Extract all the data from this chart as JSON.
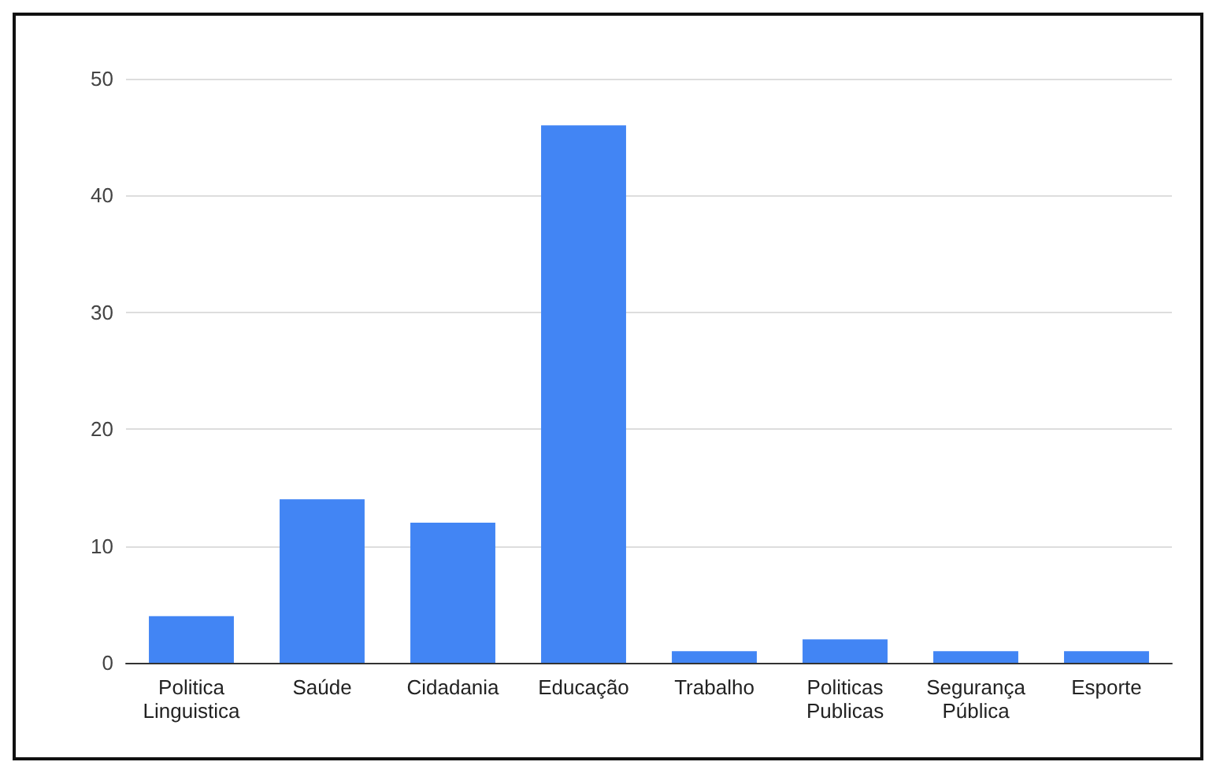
{
  "chart_data": {
    "type": "bar",
    "categories": [
      "Politica\nLinguistica",
      "Saúde",
      "Cidadania",
      "Educação",
      "Trabalho",
      "Politicas\nPublicas",
      "Segurança\nPública",
      "Esporte"
    ],
    "values": [
      4,
      14,
      12,
      46,
      1,
      2,
      1,
      1
    ],
    "color": "#4285f4",
    "ylim": [
      0,
      50
    ],
    "yticks": [
      0,
      10,
      20,
      30,
      40,
      50
    ],
    "grid": "y"
  }
}
